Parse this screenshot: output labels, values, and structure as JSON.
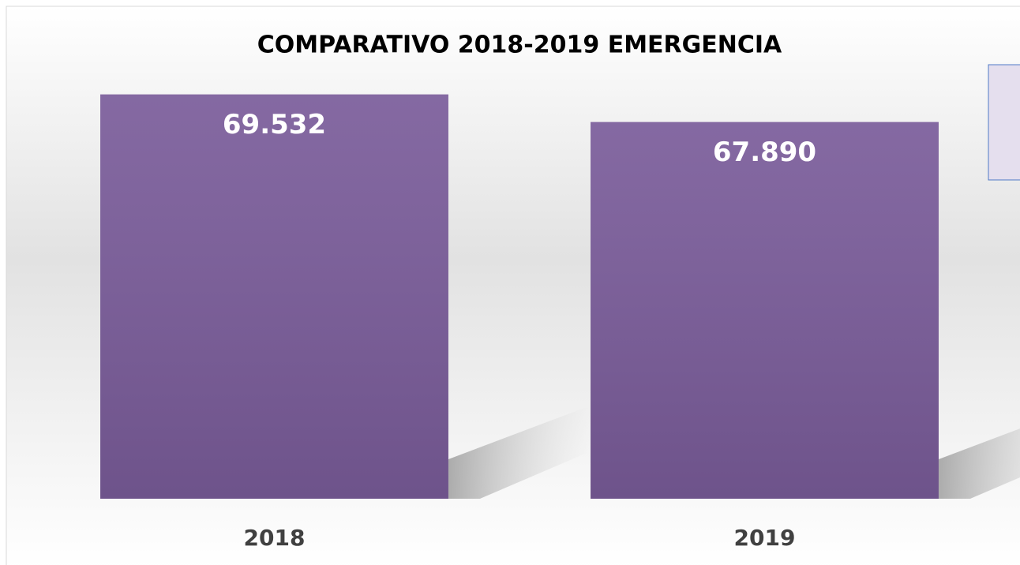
{
  "chart_data": {
    "type": "bar",
    "title": "COMPARATIVO 2018-2019 EMERGENCIA",
    "categories": [
      "2018",
      "2019"
    ],
    "values": [
      69532,
      67890
    ],
    "value_labels": [
      "69.532",
      "67.890"
    ],
    "color": "#7a5c9a",
    "ylim": [
      45500,
      72000
    ]
  }
}
